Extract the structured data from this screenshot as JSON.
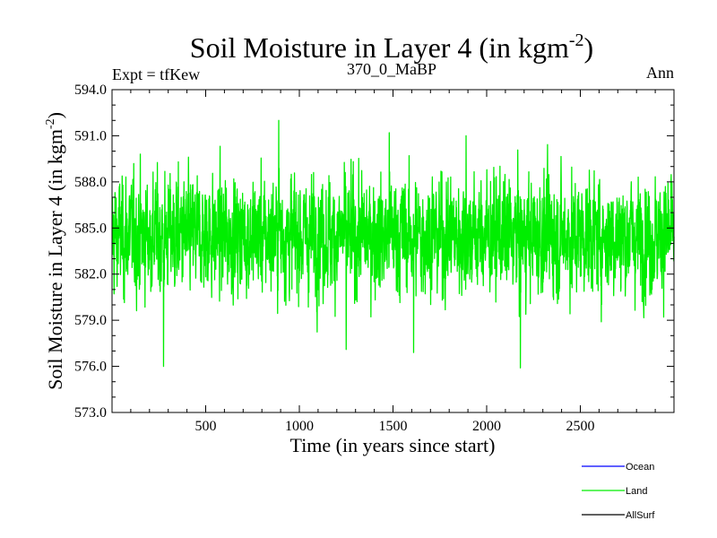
{
  "chart_data": {
    "type": "line",
    "title": {
      "main": "Soil Moisture in Layer 4 (in kgm",
      "sup": "-2",
      "close": ")"
    },
    "subtitle_left": "Expt = tfKew",
    "subtitle_center": "370_0_MaBP",
    "subtitle_right": "Ann",
    "xlabel": "Time (in years since start)",
    "ylabel": {
      "main": "Soil Moisture in Layer 4 (in kgm",
      "sup": "-2",
      "close": ")"
    },
    "xlim": [
      0,
      3000
    ],
    "ylim": [
      573.0,
      594.0
    ],
    "x_ticks": [
      500,
      1000,
      1500,
      2000,
      2500
    ],
    "x_tick_labels": [
      "500",
      "1000",
      "1500",
      "2000",
      "2500"
    ],
    "y_ticks": [
      573.0,
      576.0,
      579.0,
      582.0,
      585.0,
      588.0,
      591.0,
      594.0
    ],
    "y_tick_labels": [
      "573.0",
      "576.0",
      "579.0",
      "582.0",
      "585.0",
      "588.0",
      "591.0",
      "594.0"
    ],
    "legend_position": "bottom-right-outside",
    "legend": [
      {
        "name": "Ocean",
        "color": "#0000ff"
      },
      {
        "name": "Land",
        "color": "#00ee00"
      },
      {
        "name": "AllSurf",
        "color": "#000000"
      }
    ],
    "series": [
      {
        "name": "Land",
        "color": "#00ee00",
        "x_start": 1,
        "x_step": 1,
        "count": 3000,
        "mean": 584.5,
        "range_observed": [
          575.9,
          592.0
        ],
        "notable_points": [
          {
            "x": 275,
            "y": 576.0
          },
          {
            "x": 890,
            "y": 592.0
          },
          {
            "x": 2180,
            "y": 575.9
          },
          {
            "x": 1610,
            "y": 576.9
          },
          {
            "x": 1250,
            "y": 577.1
          },
          {
            "x": 1480,
            "y": 591.2
          },
          {
            "x": 1890,
            "y": 591.0
          }
        ]
      }
    ]
  }
}
